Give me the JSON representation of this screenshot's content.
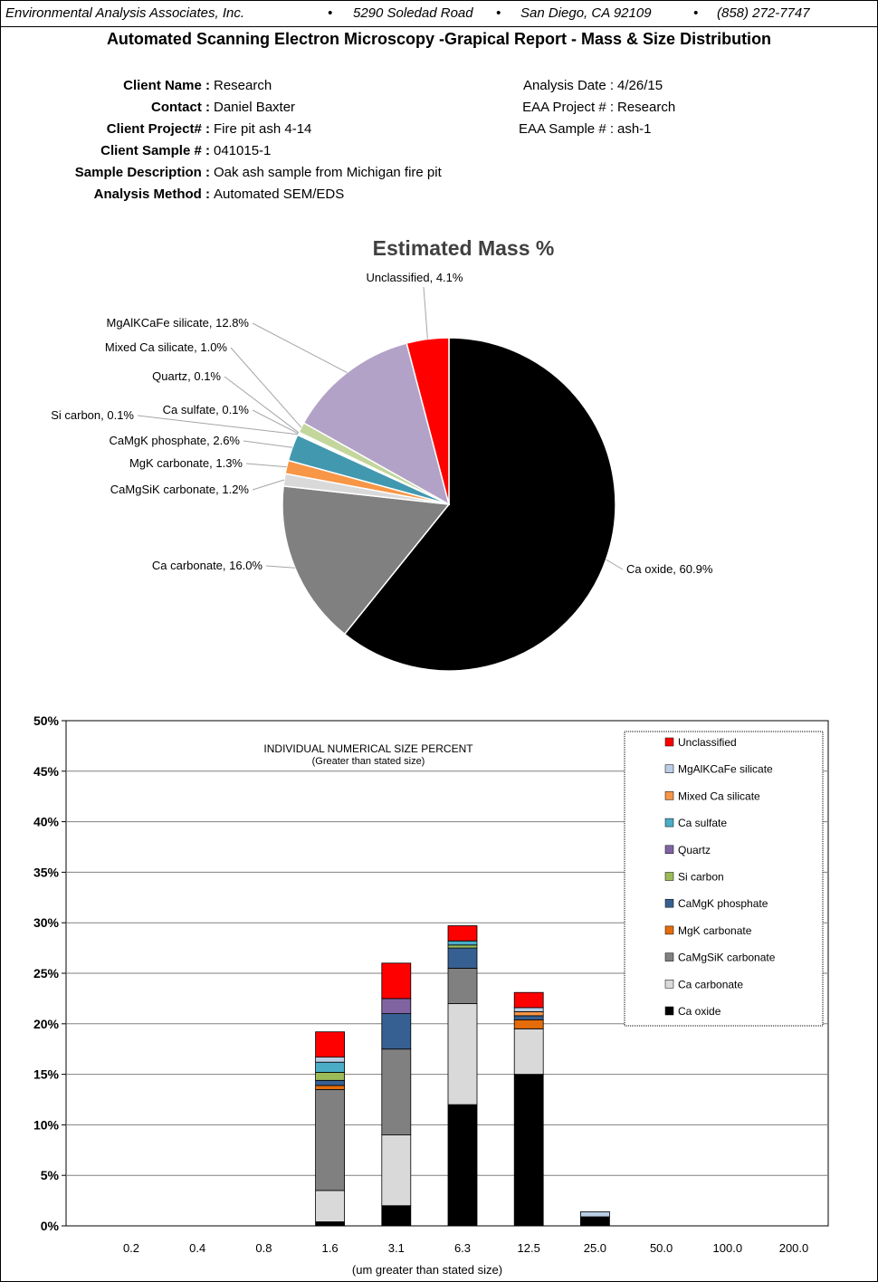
{
  "header": {
    "company": "Environmental Analysis Associates, Inc.",
    "address": "5290 Soledad Road",
    "city": "San Diego, CA 92109",
    "phone": "(858) 272-7747",
    "separator": "•"
  },
  "report_title": "Automated Scanning Electron Microscopy -Grapical Report - Mass & Size Distribution",
  "client_info": [
    {
      "label": "Client Name :",
      "value": "Research"
    },
    {
      "label": "Contact :",
      "value": "Daniel Baxter"
    },
    {
      "label": "Client Project# :",
      "value": "Fire pit ash 4-14"
    },
    {
      "label": "Client Sample # :",
      "value": "041015-1"
    },
    {
      "label": "Sample Description :",
      "value": "Oak ash sample from Michigan fire pit"
    },
    {
      "label": "Analysis Method :",
      "value": "Automated SEM/EDS"
    }
  ],
  "lab_info": [
    {
      "label": "Analysis Date :",
      "value": "4/26/15"
    },
    {
      "label": "EAA Project # :",
      "value": "Research"
    },
    {
      "label": "EAA Sample # :",
      "value": "ash-1"
    }
  ],
  "chart_data": [
    {
      "type": "pie",
      "title": "Estimated Mass %",
      "slices": [
        {
          "name": "Ca oxide",
          "value": 60.9,
          "label": "Ca oxide, 60.9%",
          "color": "#000000"
        },
        {
          "name": "Ca carbonate",
          "value": 16.0,
          "label": "Ca carbonate, 16.0%",
          "color": "#808080"
        },
        {
          "name": "CaMgSiK carbonate",
          "value": 1.2,
          "label": "CaMgSiK carbonate, 1.2%",
          "color": "#d9d9d9"
        },
        {
          "name": "MgK carbonate",
          "value": 1.3,
          "label": "MgK carbonate, 1.3%",
          "color": "#f79646"
        },
        {
          "name": "CaMgK phosphate",
          "value": 2.6,
          "label": "CaMgK phosphate, 2.6%",
          "color": "#4198af"
        },
        {
          "name": "Si carbon",
          "value": 0.1,
          "label": "Si carbon, 0.1%",
          "color": "#9bbb59"
        },
        {
          "name": "Ca sulfate",
          "value": 0.1,
          "label": "Ca sulfate, 0.1%",
          "color": "#c0504d"
        },
        {
          "name": "Quartz",
          "value": 0.1,
          "label": "Quartz, 0.1%",
          "color": "#8064a2"
        },
        {
          "name": "Mixed Ca silicate",
          "value": 1.0,
          "label": "Mixed Ca silicate, 1.0%",
          "color": "#c3d69b"
        },
        {
          "name": "MgAlKCaFe silicate",
          "value": 12.8,
          "label": "MgAlKCaFe silicate, 12.8%",
          "color": "#b3a2c7"
        },
        {
          "name": "Unclassified",
          "value": 4.1,
          "label": "Unclassified, 4.1%",
          "color": "#ff0000"
        }
      ]
    },
    {
      "type": "bar",
      "stacked": true,
      "title": "INDIVIDUAL NUMERICAL SIZE PERCENT",
      "subtitle": "(Greater than stated size)",
      "xlabel": "(um greater than stated size)",
      "ylabel": "",
      "ylim": [
        0,
        50
      ],
      "yticks": [
        "0%",
        "5%",
        "10%",
        "15%",
        "20%",
        "25%",
        "30%",
        "35%",
        "40%",
        "45%",
        "50%"
      ],
      "grid": true,
      "legend": "top-right",
      "categories": [
        "0.2",
        "0.4",
        "0.8",
        "1.6",
        "3.1",
        "6.3",
        "12.5",
        "25.0",
        "50.0",
        "100.0",
        "200.0"
      ],
      "series": [
        {
          "name": "Ca oxide",
          "color": "#000000",
          "values": [
            0,
            0,
            0,
            0.4,
            2.0,
            12.0,
            15.0,
            0.9,
            0,
            0,
            0
          ]
        },
        {
          "name": "Ca carbonate",
          "color": "#d9d9d9",
          "values": [
            0,
            0,
            0,
            3.1,
            7.0,
            10.0,
            4.5,
            0,
            0,
            0,
            0
          ]
        },
        {
          "name": "CaMgSiK carbonate",
          "color": "#808080",
          "values": [
            0,
            0,
            0,
            10.0,
            8.5,
            3.5,
            0,
            0,
            0,
            0,
            0
          ]
        },
        {
          "name": "MgK carbonate",
          "color": "#e46c0a",
          "values": [
            0,
            0,
            0,
            0.4,
            0,
            0,
            0.9,
            0,
            0,
            0,
            0
          ]
        },
        {
          "name": "CaMgK phosphate",
          "color": "#376092",
          "values": [
            0,
            0,
            0,
            0.5,
            3.5,
            2.0,
            0.4,
            0,
            0,
            0,
            0
          ]
        },
        {
          "name": "Si carbon",
          "color": "#9bbb59",
          "values": [
            0,
            0,
            0,
            0.8,
            0,
            0.3,
            0,
            0,
            0,
            0,
            0
          ]
        },
        {
          "name": "Quartz",
          "color": "#8064a2",
          "values": [
            0,
            0,
            0,
            0,
            1.5,
            0,
            0,
            0,
            0,
            0,
            0
          ]
        },
        {
          "name": "Ca sulfate",
          "color": "#4bacc6",
          "values": [
            0,
            0,
            0,
            1.0,
            0,
            0.4,
            0,
            0,
            0,
            0,
            0
          ]
        },
        {
          "name": "Mixed Ca silicate",
          "color": "#f79646",
          "values": [
            0,
            0,
            0,
            0,
            0,
            0,
            0.4,
            0,
            0,
            0,
            0
          ]
        },
        {
          "name": "MgAlKCaFe silicate",
          "color": "#b9cde5",
          "values": [
            0,
            0,
            0,
            0.5,
            0,
            0,
            0.4,
            0.5,
            0,
            0,
            0
          ]
        },
        {
          "name": "Unclassified",
          "color": "#ff0000",
          "values": [
            0,
            0,
            0,
            2.5,
            3.5,
            1.5,
            1.5,
            0,
            0,
            0,
            0
          ]
        }
      ],
      "legend_order": [
        "Unclassified",
        "MgAlKCaFe silicate",
        "Mixed Ca silicate",
        "Ca sulfate",
        "Quartz",
        "Si carbon",
        "CaMgK phosphate",
        "MgK carbonate",
        "CaMgSiK carbonate",
        "Ca carbonate",
        "Ca oxide"
      ]
    }
  ]
}
